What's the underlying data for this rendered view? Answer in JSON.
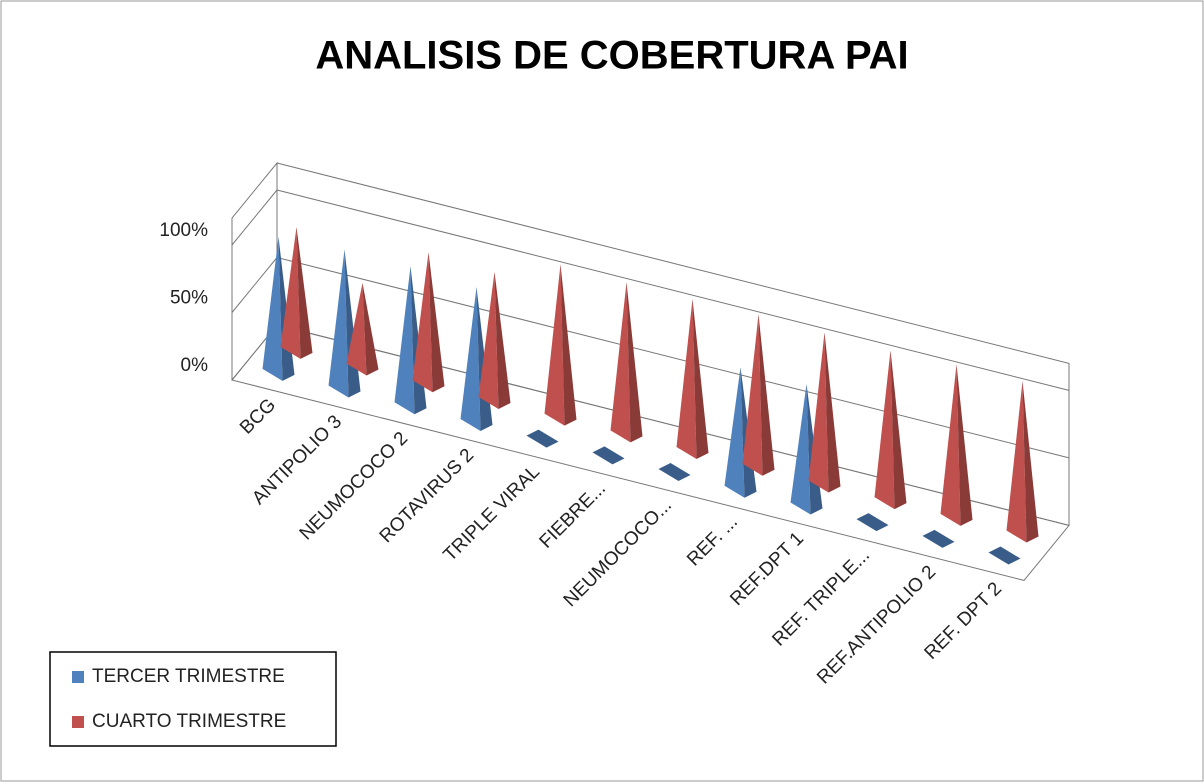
{
  "chart_data": {
    "type": "pyramid3d",
    "title": "ANALISIS DE COBERTURA PAI",
    "categories": [
      "BCG",
      "ANTIPOLIO 3",
      "NEUMOCOCO 2",
      "ROTAVIRUS 2",
      "TRIPLE VIRAL",
      "FIEBRE...",
      "NEUMOCOCO...",
      "REF. ...",
      "REF.DPT 1",
      "REF. TRIPLE...",
      "REF.ANTIPOLIO 2",
      "REF. DPT 2"
    ],
    "series": [
      {
        "name": "TERCER TRIMESTRE",
        "color": "#4f81bd",
        "values": [
          100,
          103,
          103,
          100,
          0,
          0,
          0,
          90,
          90,
          0,
          0,
          0
        ]
      },
      {
        "name": "CUARTO TRIMESTRE",
        "color": "#c0504d",
        "values": [
          91,
          62,
          97,
          95,
          113,
          112,
          112,
          113,
          112,
          111,
          113,
          113
        ]
      }
    ],
    "ylim": [
      0,
      120
    ],
    "yticks": [
      {
        "value": 0,
        "label": "0%"
      },
      {
        "value": 50,
        "label": "50%"
      },
      {
        "value": 100,
        "label": "100%"
      }
    ],
    "grid": true,
    "legend": "bottom-left"
  }
}
